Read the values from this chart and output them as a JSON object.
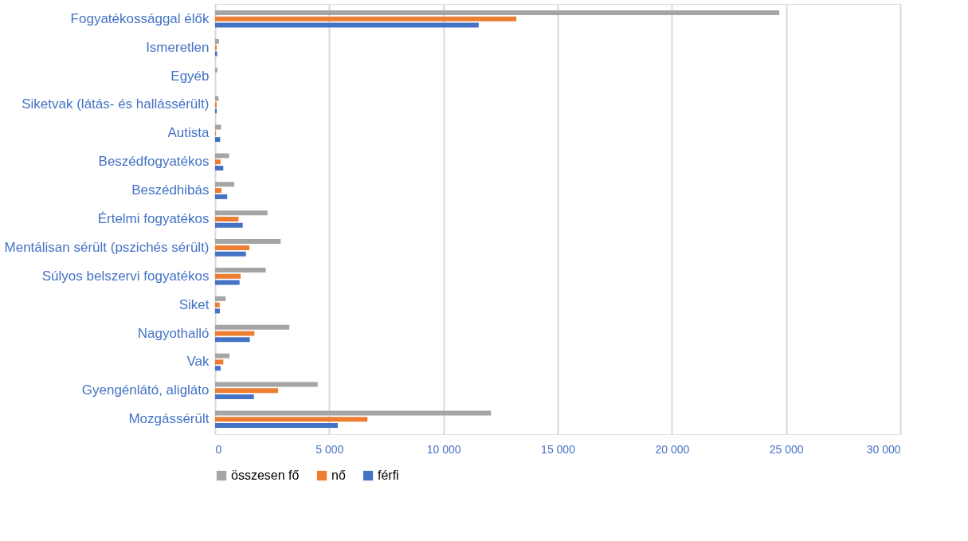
{
  "chart_data": {
    "type": "bar",
    "orientation": "horizontal",
    "categories": [
      "Fogyatékossággal élők",
      "Ismeretlen",
      "Egyéb",
      "Siketvak (látás- és hallássérült)",
      "Autista",
      "Beszédfogyatékos",
      "Beszédhibás",
      "Értelmi fogyatékos",
      "Mentálisan sérült (pszichés sérült)",
      "Súlyos belszervi fogyatékos",
      "Siket",
      "Nagyothalló",
      "Vak",
      "Gyengénlátó, aligláto",
      "Mozgássérült"
    ],
    "series": [
      {
        "name": "összesen fő",
        "color": "#a5a5a5",
        "values": [
          24700,
          170,
          100,
          150,
          260,
          610,
          840,
          2290,
          2870,
          2220,
          460,
          3250,
          630,
          4490,
          12080
        ]
      },
      {
        "name": "nő",
        "color": "#ed7d31",
        "values": [
          13190,
          70,
          null,
          70,
          30,
          240,
          280,
          1030,
          1500,
          1120,
          200,
          1720,
          360,
          2760,
          6670
        ]
      },
      {
        "name": "férfi",
        "color": "#4472c4",
        "values": [
          11540,
          90,
          null,
          70,
          220,
          360,
          530,
          1210,
          1350,
          1070,
          210,
          1520,
          240,
          1700,
          5370
        ]
      }
    ],
    "xlim": [
      0,
      30000
    ],
    "xticks": [
      0,
      {
        "value": 5000,
        "label": "5 000"
      },
      {
        "value": 10000,
        "label": "10 000"
      },
      {
        "value": 15000,
        "label": "15 000"
      },
      {
        "value": 20000,
        "label": "20 000"
      },
      {
        "value": 25000,
        "label": "25 000"
      },
      {
        "value": 30000,
        "label": "30 000"
      }
    ],
    "grid": "x",
    "legend": "bottom"
  }
}
